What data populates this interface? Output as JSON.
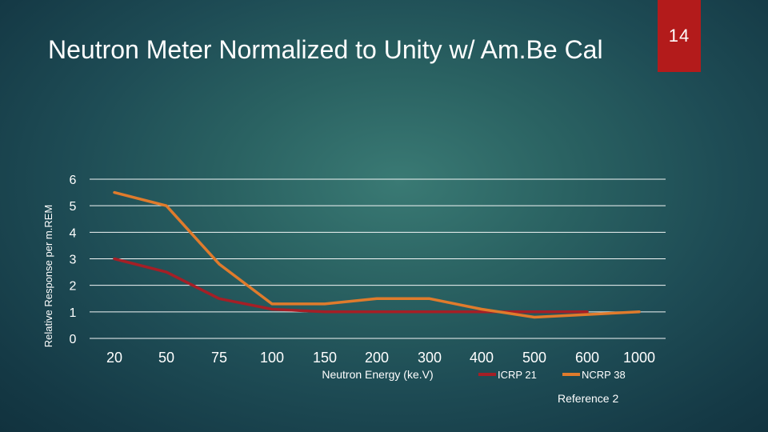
{
  "slide": {
    "title": "Neutron Meter Normalized to Unity w/ Am.Be Cal",
    "page_number": "14",
    "reference": "Reference 2",
    "accent_color": "#b31b1b"
  },
  "chart_data": {
    "type": "line",
    "title": "",
    "xlabel": "Neutron Energy (ke.V)",
    "ylabel": "Relative Response per m.REM",
    "categories": [
      "20",
      "50",
      "75",
      "100",
      "150",
      "200",
      "300",
      "400",
      "500",
      "600",
      "1000"
    ],
    "ylim": [
      0,
      6
    ],
    "yticks": [
      0,
      1,
      2,
      3,
      4,
      5,
      6
    ],
    "grid": true,
    "legend_position": "bottom-right",
    "series": [
      {
        "name": "ICRP 21",
        "color": "#a51f26",
        "values": [
          3.0,
          2.5,
          1.5,
          1.1,
          1.0,
          1.0,
          1.0,
          1.0,
          1.0,
          1.0,
          null
        ]
      },
      {
        "name": "NCRP 38",
        "color": "#e07b2c",
        "values": [
          5.5,
          5.0,
          2.8,
          1.3,
          1.3,
          1.5,
          1.5,
          1.1,
          0.8,
          0.9,
          1.0
        ]
      }
    ]
  }
}
